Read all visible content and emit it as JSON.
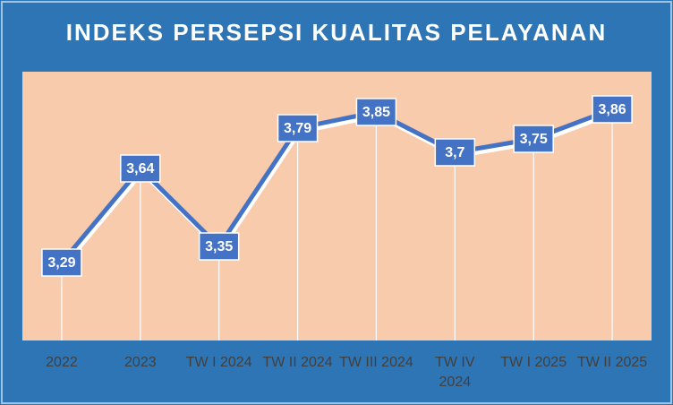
{
  "chart_data": {
    "type": "line",
    "title": "INDEKS PERSEPSI KUALITAS PELAYANAN",
    "categories": [
      "2022",
      "2023",
      "TW I 2024",
      "TW II 2024",
      "TW III 2024",
      "TW IV 2024",
      "TW I 2025",
      "TW II 2025"
    ],
    "values": [
      3.29,
      3.64,
      3.35,
      3.79,
      3.85,
      3.7,
      3.75,
      3.86
    ],
    "value_labels": [
      "3,29",
      "3,64",
      "3,35",
      "3,79",
      "3,85",
      "3,7",
      "3,75",
      "3,86"
    ],
    "color": "#4472c4",
    "ylim": [
      3,
      4
    ]
  }
}
